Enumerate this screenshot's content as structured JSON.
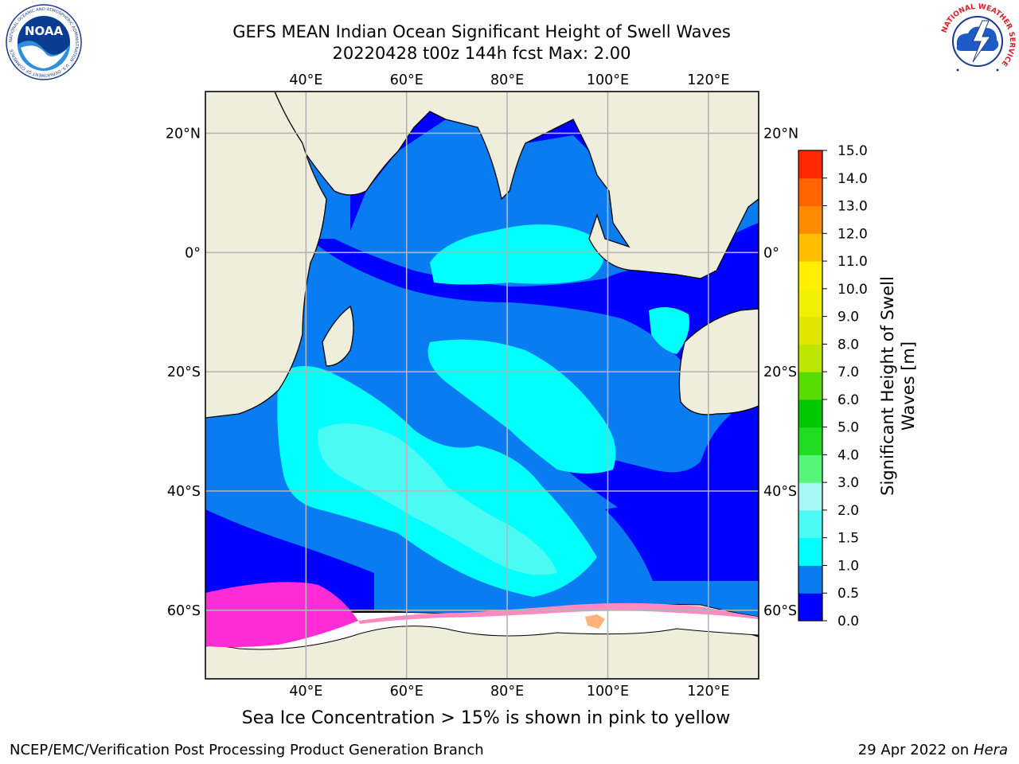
{
  "header": {
    "title_line1": "GEFS MEAN Indian Ocean Significant Height of Swell Waves",
    "title_line2": "20220428 t00z 144h fcst   Max: 2.00"
  },
  "logos": {
    "left": {
      "name": "noaa-logo",
      "text": "NOAA",
      "ring_text": "NATIONAL OCEANIC AND ATMOSPHERIC ADMINISTRATION · U.S. DEPARTMENT OF COMMERCE"
    },
    "right": {
      "name": "nws-logo",
      "ring_text": "NATIONAL WEATHER SERVICE"
    }
  },
  "caption": "Sea Ice Concentration > 15% is shown in pink to yellow",
  "footer": {
    "left": "NCEP/EMC/Verification Post Processing Product Generation Branch",
    "right_prefix": "29 Apr 2022 on ",
    "right_host": "Hera"
  },
  "colors": {
    "land": "#efeedd",
    "ice": "#ffffff",
    "grid": "#b4b4b4",
    "ice_concentration": [
      "#ff2bd5",
      "#ff8ac0",
      "#ffb27a",
      "#ffd95a"
    ]
  },
  "chart_data": {
    "type": "heatmap",
    "title": "GEFS MEAN Indian Ocean Significant Height of Swell Waves",
    "variable": "Significant Height of Swell Waves [m]",
    "max": 2.0,
    "x_axis": {
      "range": [
        20,
        130
      ],
      "ticks": [
        40,
        60,
        80,
        100,
        120
      ],
      "tick_labels": [
        "40°E",
        "60°E",
        "80°E",
        "100°E",
        "120°E"
      ]
    },
    "y_axis": {
      "range": [
        -71.5,
        27
      ],
      "ticks": [
        20,
        0,
        -20,
        -40,
        -60
      ],
      "tick_labels": [
        "20°N",
        "0°",
        "20°S",
        "40°S",
        "60°S"
      ]
    },
    "grid": true,
    "colorbar": {
      "label": "Significant Height of Swell\nWaves [m]",
      "label_line1": "Significant Height of Swell",
      "label_line2": "Waves [m]",
      "bounds": [
        0.0,
        0.5,
        1.0,
        1.5,
        2.0,
        3.0,
        4.0,
        5.0,
        6.0,
        7.0,
        8.0,
        9.0,
        10.0,
        11.0,
        12.0,
        13.0,
        14.0,
        15.0
      ],
      "tick_labels": [
        "0.0",
        "0.5",
        "1.0",
        "1.5",
        "2.0",
        "3.0",
        "4.0",
        "5.0",
        "6.0",
        "7.0",
        "8.0",
        "9.0",
        "10.0",
        "11.0",
        "12.0",
        "13.0",
        "14.0",
        "15.0"
      ],
      "colors": [
        "#0000ff",
        "#0a7cf2",
        "#00ffff",
        "#4bfaf2",
        "#a6f7f5",
        "#55f57a",
        "#22dc22",
        "#00c800",
        "#58dc00",
        "#bce600",
        "#e0e600",
        "#f0f000",
        "#fff000",
        "#ffbf00",
        "#ff8c00",
        "#ff6400",
        "#ff2800"
      ]
    }
  }
}
